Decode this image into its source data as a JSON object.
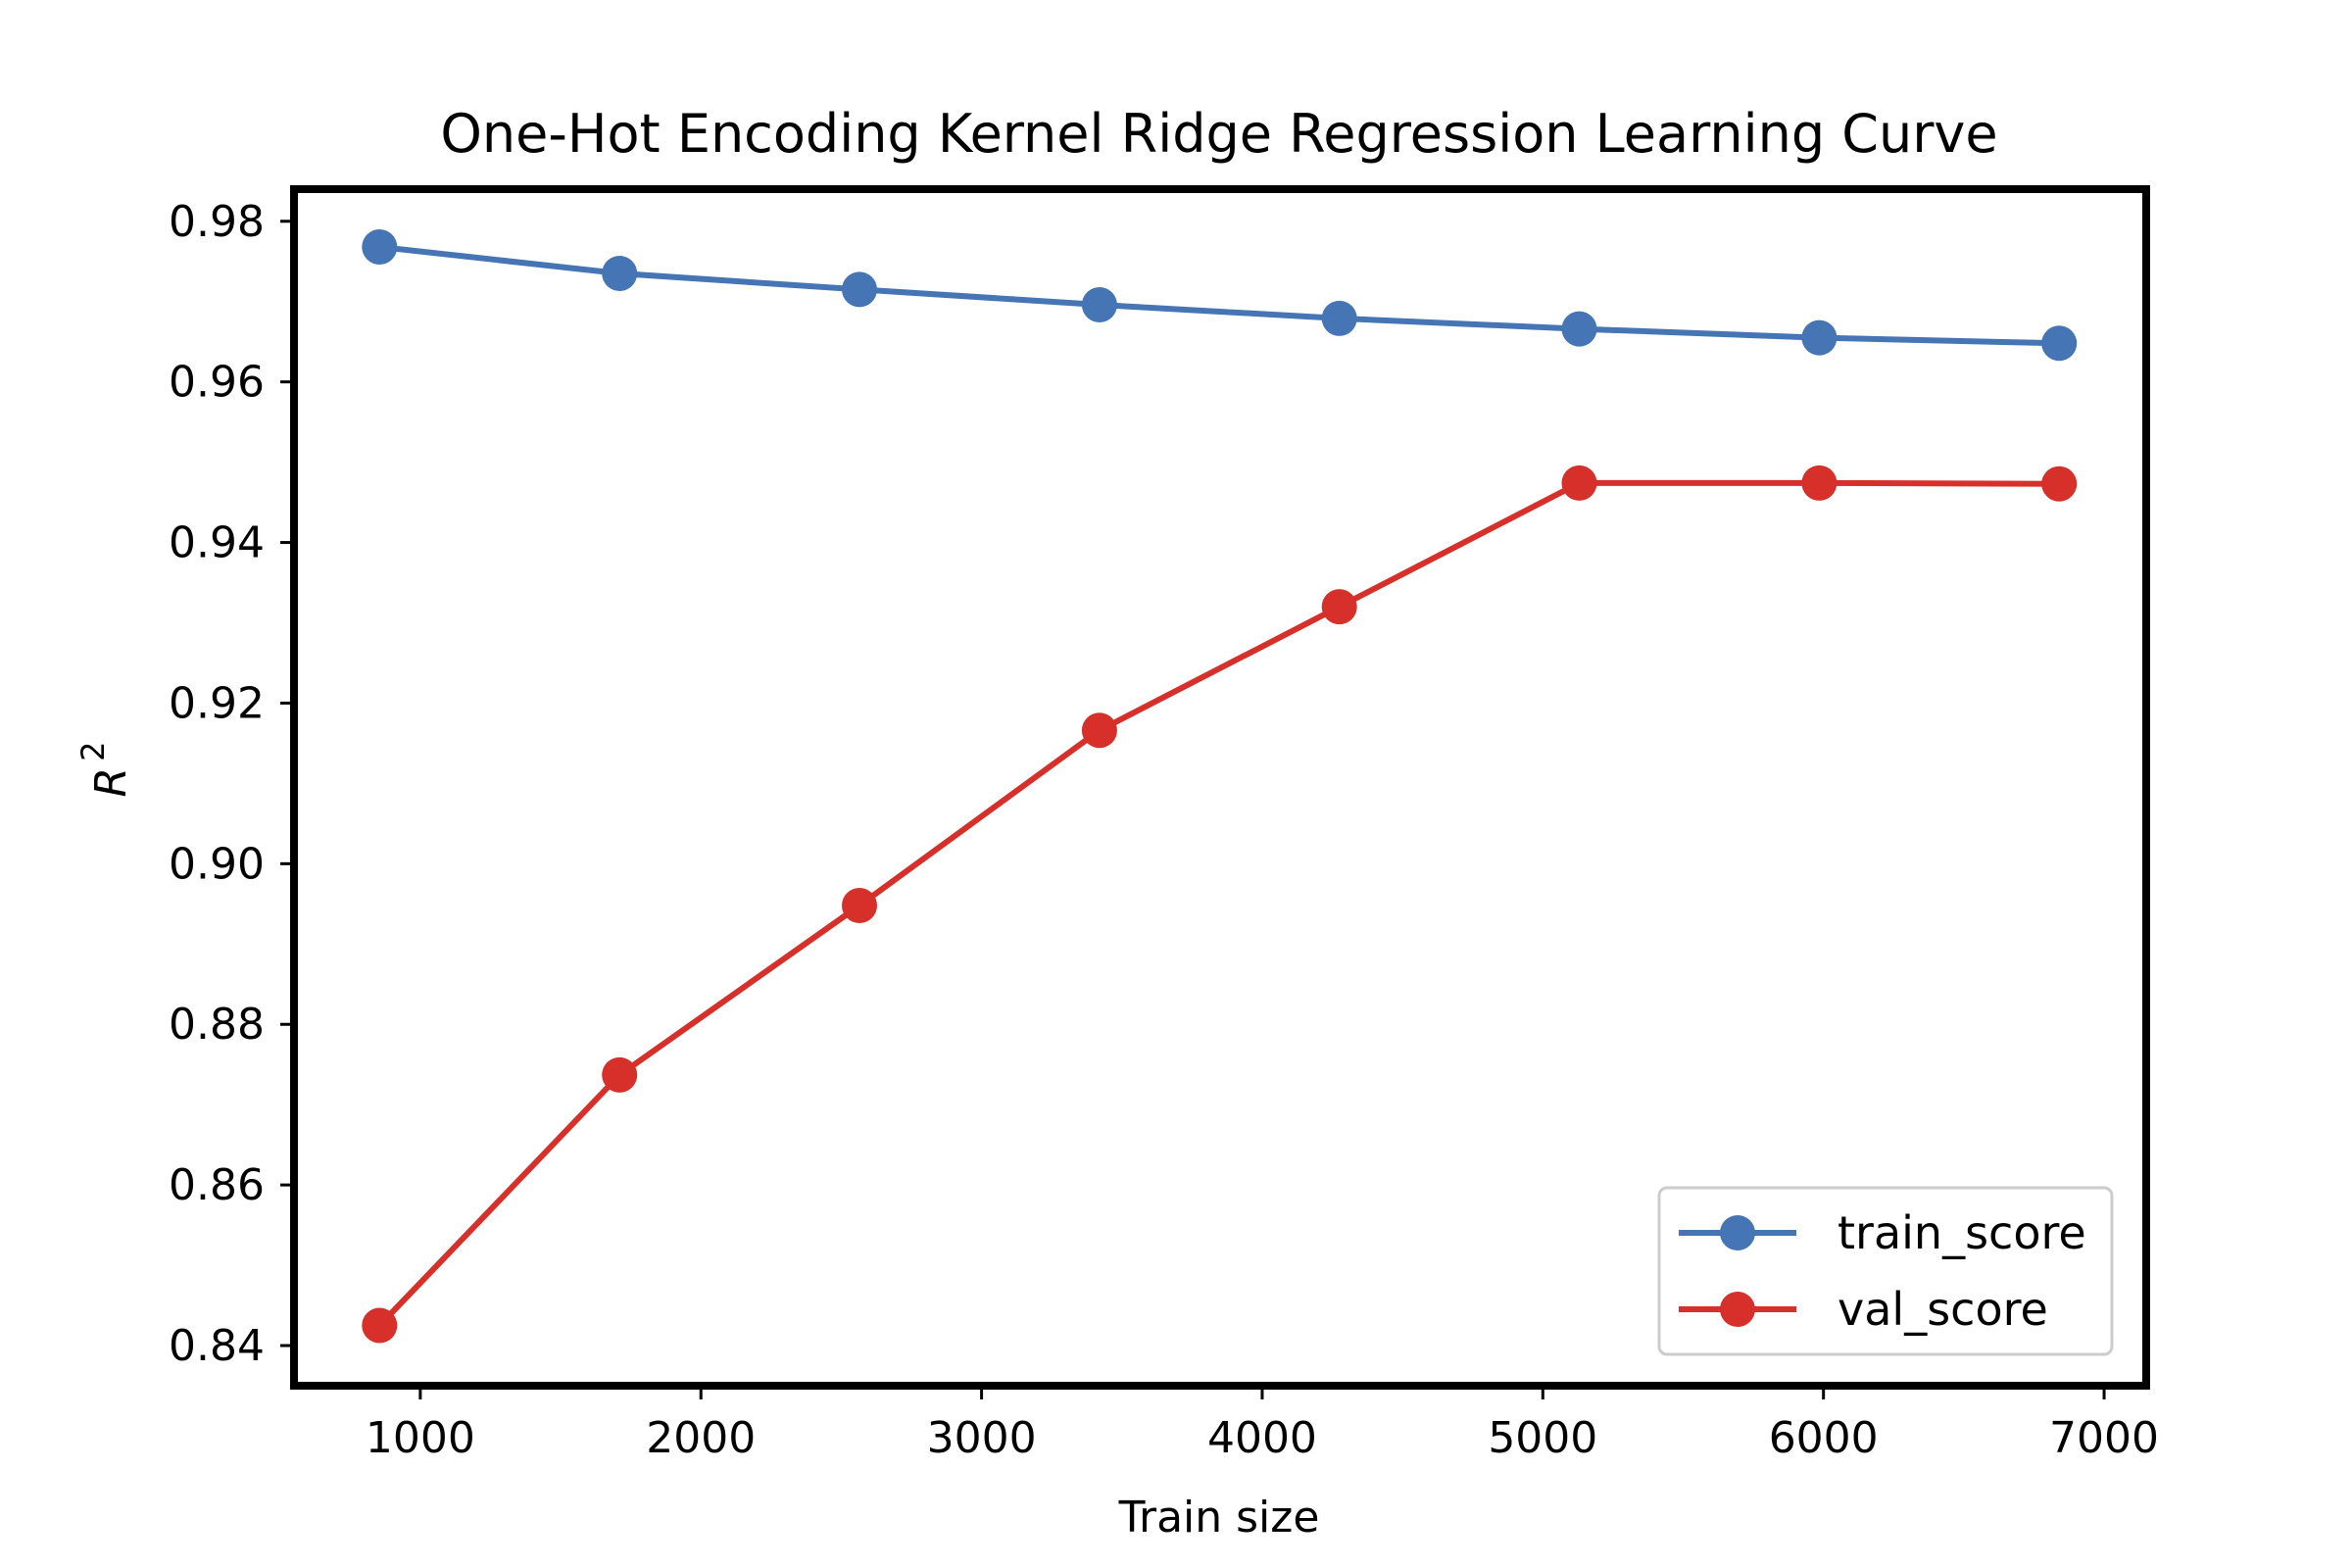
{
  "chart_data": {
    "type": "line",
    "title": "One-Hot Encoding Kernel Ridge Regression Learning Curve",
    "xlabel": "Train size",
    "ylabel": "R",
    "ylabel_superscript": "2",
    "xlim": [
      550,
      7150
    ],
    "ylim": [
      0.835,
      0.984
    ],
    "xticks": [
      1000,
      2000,
      3000,
      4000,
      5000,
      6000,
      7000
    ],
    "xtick_labels": [
      "1000",
      "2000",
      "3000",
      "4000",
      "5000",
      "6000",
      "7000"
    ],
    "yticks": [
      0.84,
      0.86,
      0.88,
      0.9,
      0.92,
      0.94,
      0.96,
      0.98
    ],
    "ytick_labels": [
      "0.84",
      "0.86",
      "0.88",
      "0.90",
      "0.92",
      "0.94",
      "0.96",
      "0.98"
    ],
    "grid": false,
    "legend_position": "bottom-right",
    "x": [
      855,
      1710,
      2565,
      3420,
      4275,
      5130,
      5985,
      6840
    ],
    "series": [
      {
        "name": "train_score",
        "color": "#4575b4",
        "values": [
          0.9768,
          0.9735,
          0.9715,
          0.9696,
          0.9679,
          0.9666,
          0.9655,
          0.9648
        ]
      },
      {
        "name": "val_score",
        "color": "#d7302a",
        "values": [
          0.8425,
          0.8737,
          0.8948,
          0.9166,
          0.932,
          0.9474,
          0.9474,
          0.9473
        ]
      }
    ]
  }
}
